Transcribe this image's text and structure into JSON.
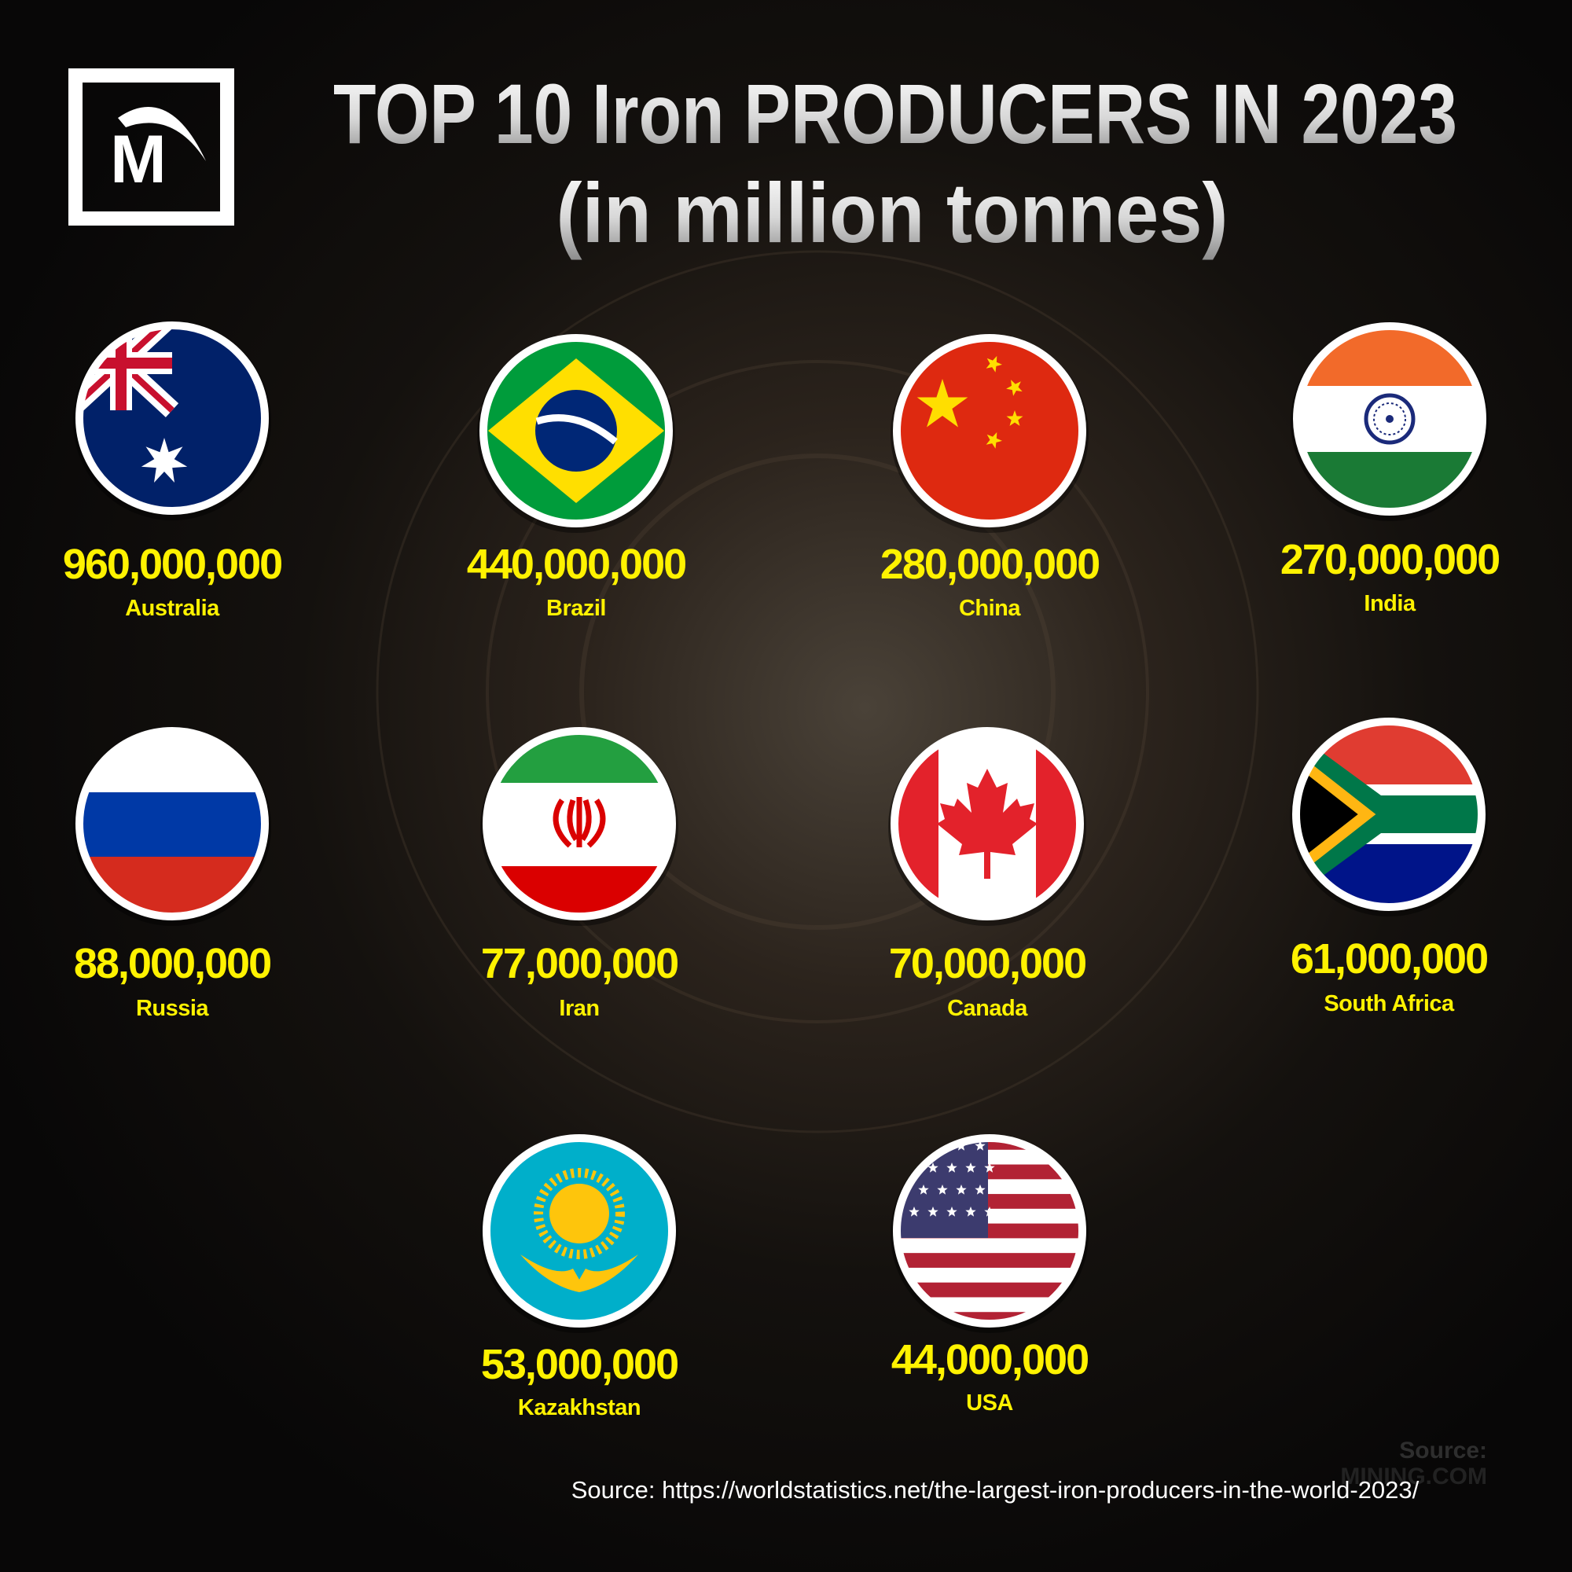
{
  "header": {
    "title": "TOP 10 Iron PRODUCERS IN 2023",
    "subtitle": "(in million tonnes)"
  },
  "logo": {
    "letter": "M"
  },
  "producers": [
    {
      "value": "960,000,000",
      "country": "Australia"
    },
    {
      "value": "440,000,000",
      "country": "Brazil"
    },
    {
      "value": "280,000,000",
      "country": "China"
    },
    {
      "value": "270,000,000",
      "country": "India"
    },
    {
      "value": "88,000,000",
      "country": "Russia"
    },
    {
      "value": "77,000,000",
      "country": "Iran"
    },
    {
      "value": "70,000,000",
      "country": "Canada"
    },
    {
      "value": "61,000,000",
      "country": "South Africa"
    },
    {
      "value": "53,000,000",
      "country": "Kazakhstan"
    },
    {
      "value": "44,000,000",
      "country": "USA"
    }
  ],
  "watermark": {
    "label": "Source:",
    "name": "MINING.COM"
  },
  "source": "Source: https://worldstatistics.net/the-largest-iron-producers-in-the-world-2023/"
}
